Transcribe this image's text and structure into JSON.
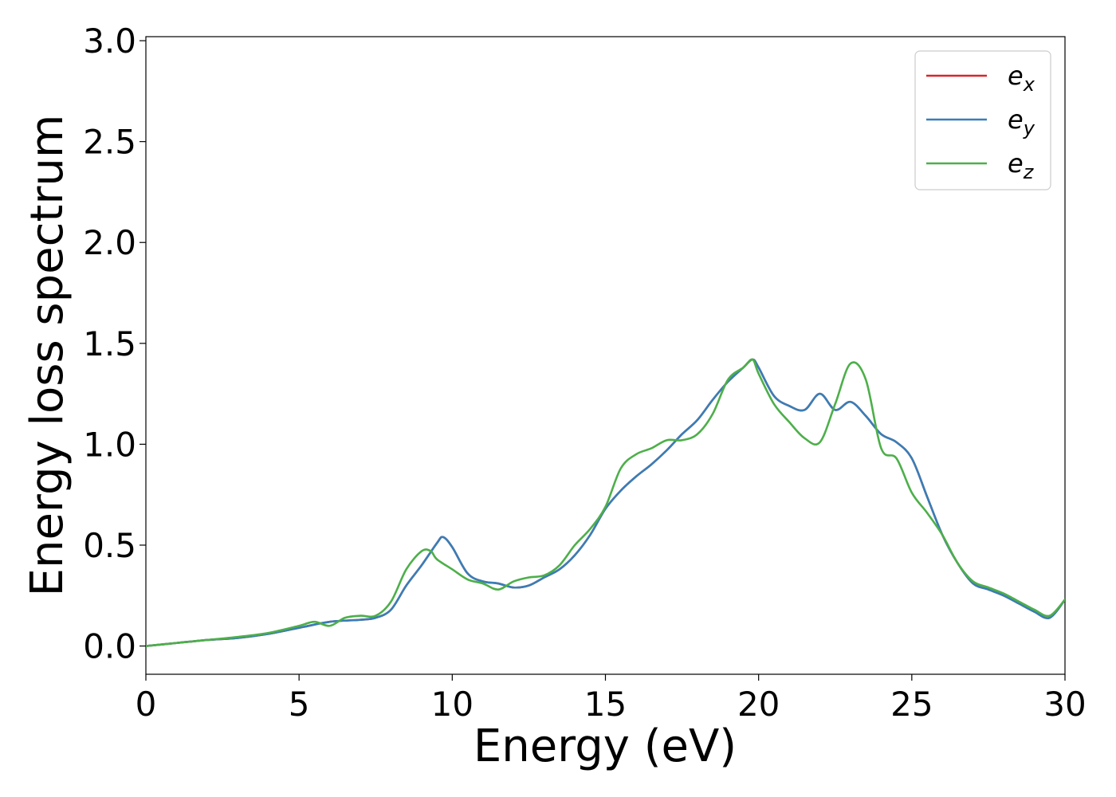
{
  "chart_data": {
    "type": "line",
    "title": "",
    "xlabel": "Energy (eV)",
    "ylabel": "Energy loss spectrum",
    "xlim": [
      0,
      30
    ],
    "ylim": [
      -0.14,
      3.02
    ],
    "xticks": [
      0,
      5,
      10,
      15,
      20,
      25,
      30
    ],
    "xtick_labels": [
      "0",
      "5",
      "10",
      "15",
      "20",
      "25",
      "30"
    ],
    "yticks": [
      0.0,
      0.5,
      1.0,
      1.5,
      2.0,
      2.5,
      3.0
    ],
    "ytick_labels": [
      "0.0",
      "0.5",
      "1.0",
      "1.5",
      "2.0",
      "2.5",
      "3.0"
    ],
    "grid": false,
    "legend_position": "top-right",
    "series": [
      {
        "name": "ex",
        "label_base": "e",
        "label_sub": "x",
        "color": "#d62728",
        "x": [
          0,
          1,
          2,
          3,
          4,
          5,
          6,
          7,
          7.5,
          8,
          8.5,
          9,
          9.5,
          9.7,
          10,
          10.5,
          11,
          11.5,
          12,
          12.5,
          13,
          13.5,
          14,
          14.5,
          15,
          15.5,
          16,
          16.5,
          17,
          17.5,
          18,
          18.5,
          19,
          19.5,
          19.8,
          20,
          20.5,
          21,
          21.5,
          22,
          22.5,
          23,
          23.5,
          24,
          24.5,
          25,
          25.5,
          26,
          26.5,
          27,
          27.5,
          28,
          28.5,
          29,
          29.5,
          30
        ],
        "y": [
          0,
          0.015,
          0.03,
          0.04,
          0.06,
          0.09,
          0.12,
          0.13,
          0.14,
          0.18,
          0.3,
          0.4,
          0.51,
          0.54,
          0.49,
          0.36,
          0.32,
          0.31,
          0.29,
          0.3,
          0.34,
          0.38,
          0.45,
          0.55,
          0.68,
          0.77,
          0.84,
          0.9,
          0.97,
          1.05,
          1.12,
          1.22,
          1.31,
          1.38,
          1.42,
          1.38,
          1.24,
          1.19,
          1.17,
          1.25,
          1.17,
          1.21,
          1.14,
          1.05,
          1.01,
          0.93,
          0.74,
          0.55,
          0.41,
          0.31,
          0.28,
          0.25,
          0.21,
          0.17,
          0.14,
          0.23
        ]
      },
      {
        "name": "ey",
        "label_base": "e",
        "label_sub": "y",
        "color": "#377eb8",
        "x": [
          0,
          1,
          2,
          3,
          4,
          5,
          6,
          7,
          7.5,
          8,
          8.5,
          9,
          9.5,
          9.7,
          10,
          10.5,
          11,
          11.5,
          12,
          12.5,
          13,
          13.5,
          14,
          14.5,
          15,
          15.5,
          16,
          16.5,
          17,
          17.5,
          18,
          18.5,
          19,
          19.5,
          19.8,
          20,
          20.5,
          21,
          21.5,
          22,
          22.5,
          23,
          23.5,
          24,
          24.5,
          25,
          25.5,
          26,
          26.5,
          27,
          27.5,
          28,
          28.5,
          29,
          29.5,
          30
        ],
        "y": [
          0,
          0.015,
          0.03,
          0.04,
          0.06,
          0.09,
          0.12,
          0.13,
          0.14,
          0.18,
          0.3,
          0.4,
          0.51,
          0.54,
          0.49,
          0.36,
          0.32,
          0.31,
          0.29,
          0.3,
          0.34,
          0.38,
          0.45,
          0.55,
          0.68,
          0.77,
          0.84,
          0.9,
          0.97,
          1.05,
          1.12,
          1.22,
          1.31,
          1.38,
          1.42,
          1.38,
          1.24,
          1.19,
          1.17,
          1.25,
          1.17,
          1.21,
          1.14,
          1.05,
          1.01,
          0.93,
          0.74,
          0.55,
          0.41,
          0.31,
          0.28,
          0.25,
          0.21,
          0.17,
          0.14,
          0.23
        ]
      },
      {
        "name": "ez",
        "label_base": "e",
        "label_sub": "z",
        "color": "#4daf4a",
        "x": [
          0,
          1,
          2,
          3,
          4,
          5,
          5.5,
          6,
          6.5,
          7,
          7.5,
          8,
          8.5,
          9,
          9.3,
          9.5,
          10,
          10.5,
          11,
          11.5,
          12,
          12.5,
          13,
          13.5,
          14,
          14.5,
          15,
          15.5,
          16,
          16.5,
          17,
          17.5,
          18,
          18.5,
          19,
          19.5,
          19.8,
          20,
          20.5,
          21,
          21.5,
          22,
          22.5,
          23,
          23.5,
          24,
          24.5,
          25,
          25.5,
          26,
          26.5,
          27,
          27.5,
          28,
          28.5,
          29,
          29.5,
          30
        ],
        "y": [
          0,
          0.015,
          0.03,
          0.045,
          0.065,
          0.1,
          0.12,
          0.1,
          0.14,
          0.15,
          0.15,
          0.22,
          0.38,
          0.47,
          0.47,
          0.43,
          0.38,
          0.33,
          0.31,
          0.28,
          0.32,
          0.34,
          0.35,
          0.4,
          0.5,
          0.58,
          0.69,
          0.88,
          0.95,
          0.98,
          1.02,
          1.02,
          1.05,
          1.15,
          1.32,
          1.38,
          1.42,
          1.35,
          1.2,
          1.11,
          1.03,
          1.01,
          1.2,
          1.4,
          1.32,
          0.98,
          0.93,
          0.76,
          0.66,
          0.55,
          0.41,
          0.32,
          0.29,
          0.26,
          0.22,
          0.18,
          0.15,
          0.23
        ]
      }
    ]
  }
}
